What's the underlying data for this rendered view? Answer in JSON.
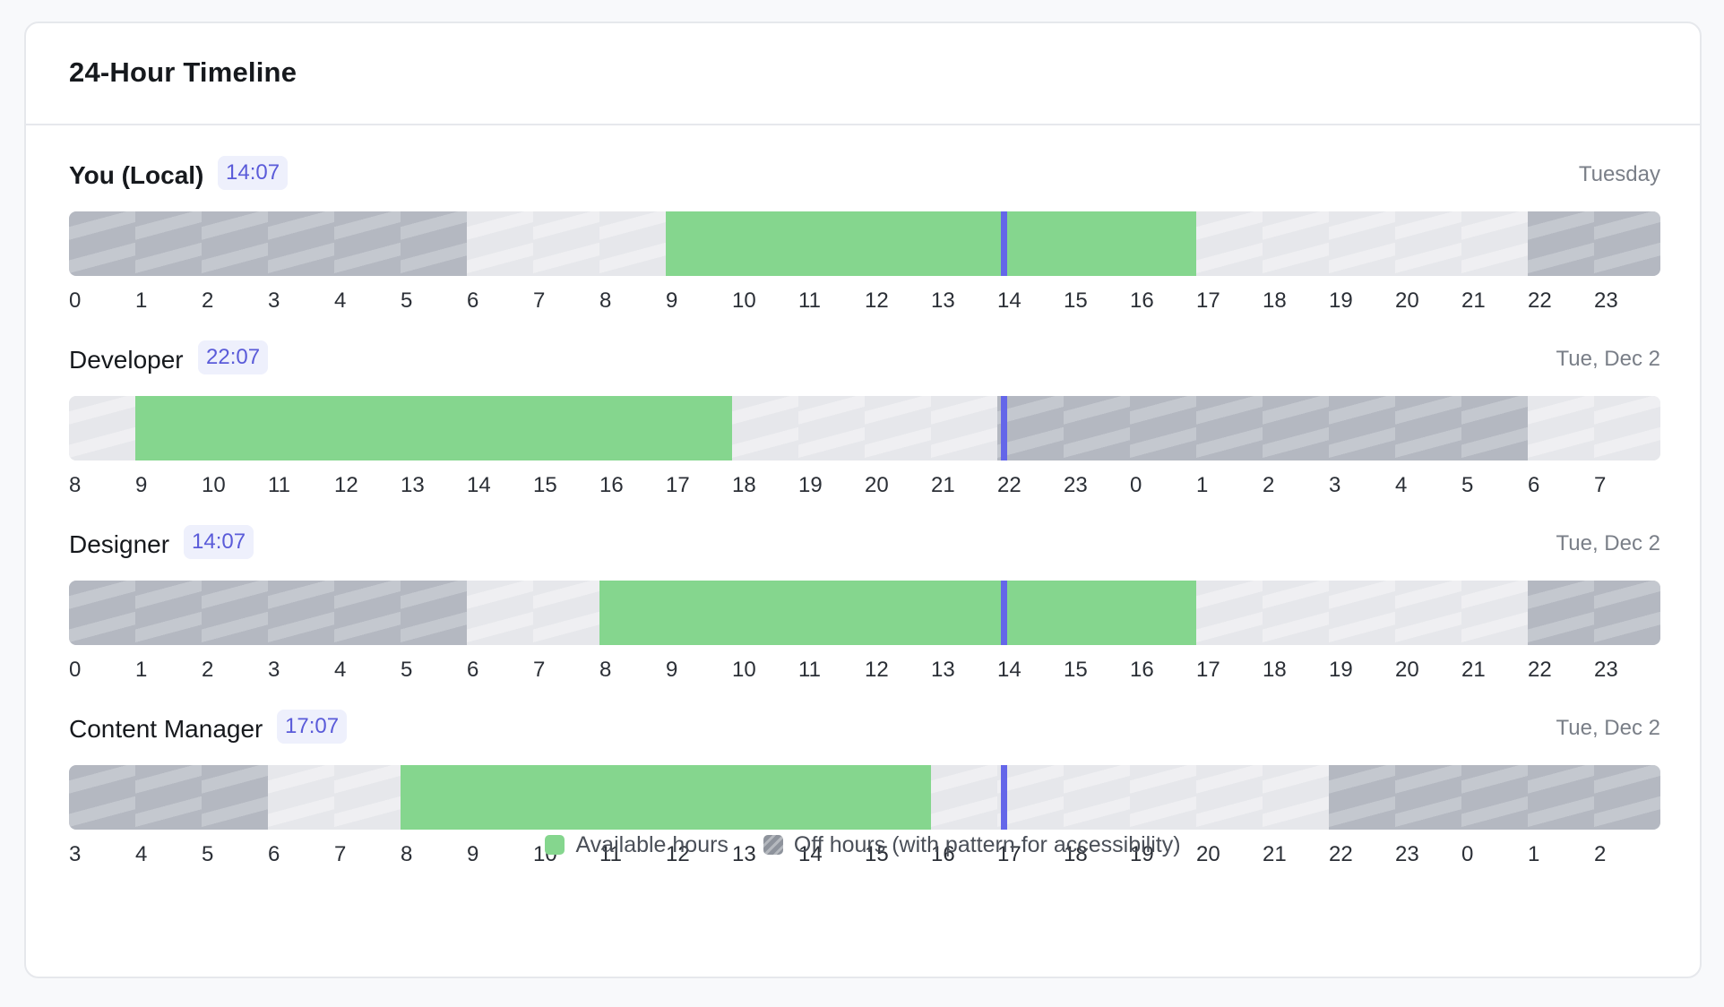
{
  "title": "24-Hour Timeline",
  "colors": {
    "available": "#85d68e",
    "off_hours": "#b4b8c1",
    "neutral": "#e6e7eb",
    "now_marker": "#6466e9",
    "time_badge_bg": "#eef0fc",
    "time_badge_text": "#5a5bd9"
  },
  "zones": [
    {
      "name": "You (Local)",
      "time": "14:07",
      "day": "Tuesday",
      "bold": true,
      "start_hour": 0,
      "available": [
        9,
        17
      ],
      "off_hours": [
        [
          22,
          6
        ]
      ],
      "now_hour": 14.1
    },
    {
      "name": "Developer",
      "time": "22:07",
      "day": "Tue, Dec 2",
      "bold": false,
      "start_hour": 8,
      "available": [
        9,
        18
      ],
      "off_hours": [
        [
          22,
          6
        ]
      ],
      "now_hour": 22.1
    },
    {
      "name": "Designer",
      "time": "14:07",
      "day": "Tue, Dec 2",
      "bold": false,
      "start_hour": 0,
      "available": [
        8,
        17
      ],
      "off_hours": [
        [
          22,
          6
        ]
      ],
      "now_hour": 14.1
    },
    {
      "name": "Content Manager",
      "time": "17:07",
      "day": "Tue, Dec 2",
      "bold": false,
      "start_hour": 3,
      "available": [
        8,
        16
      ],
      "off_hours": [
        [
          22,
          6
        ]
      ],
      "now_hour": 17.1
    }
  ],
  "legend": {
    "available_label": "Available hours",
    "off_label": "Off hours (with pattern for accessibility)"
  }
}
